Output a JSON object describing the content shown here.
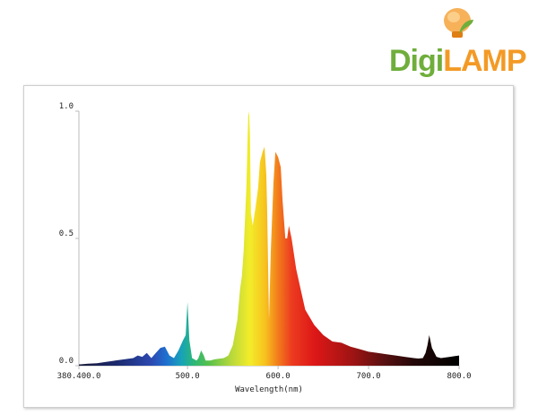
{
  "logo": {
    "text_digi": "Digi",
    "text_lamp": "LAMP",
    "bulb_icon": "lightbulb-leaf-icon",
    "colors": {
      "digi": "#6fae3b",
      "lamp": "#f39a25"
    }
  },
  "chart_data": {
    "type": "area",
    "title": "",
    "xlabel": "Wavelength(nm)",
    "ylabel": "",
    "xlim": [
      380,
      800
    ],
    "ylim": [
      0,
      1.0
    ],
    "grid": false,
    "x_ticks": [
      {
        "value": 380,
        "label": "380.400.0"
      },
      {
        "value": 500,
        "label": "500.0"
      },
      {
        "value": 600,
        "label": "600.0"
      },
      {
        "value": 700,
        "label": "700.0"
      },
      {
        "value": 800,
        "label": "800.0"
      }
    ],
    "y_ticks": [
      {
        "value": 0,
        "label": "0.0"
      },
      {
        "value": 0.5,
        "label": "0.5"
      },
      {
        "value": 1.0,
        "label": "1.0"
      }
    ],
    "series": [
      {
        "fill": "visible-spectrum-gradient",
        "x": [
          380,
          390,
          400,
          410,
          420,
          430,
          440,
          445,
          450,
          455,
          460,
          465,
          470,
          475,
          480,
          485,
          490,
          495,
          498,
          500,
          502,
          505,
          510,
          512,
          515,
          518,
          520,
          525,
          530,
          540,
          545,
          550,
          555,
          558,
          560,
          562,
          565,
          567,
          568,
          569,
          570,
          572,
          575,
          578,
          580,
          583,
          585,
          587,
          588,
          590,
          592,
          595,
          597,
          600,
          603,
          605,
          608,
          610,
          612,
          615,
          620,
          625,
          630,
          640,
          650,
          660,
          670,
          680,
          690,
          700,
          710,
          720,
          730,
          740,
          750,
          755,
          760,
          763,
          765,
          767,
          770,
          775,
          780,
          790,
          800
        ],
        "y": [
          0.005,
          0.008,
          0.01,
          0.015,
          0.02,
          0.025,
          0.03,
          0.04,
          0.035,
          0.05,
          0.03,
          0.05,
          0.07,
          0.075,
          0.04,
          0.03,
          0.06,
          0.1,
          0.12,
          0.25,
          0.1,
          0.03,
          0.02,
          0.03,
          0.06,
          0.04,
          0.02,
          0.02,
          0.025,
          0.03,
          0.04,
          0.08,
          0.18,
          0.3,
          0.35,
          0.45,
          0.7,
          0.98,
          1.0,
          0.9,
          0.6,
          0.55,
          0.62,
          0.7,
          0.8,
          0.84,
          0.86,
          0.75,
          0.6,
          0.18,
          0.45,
          0.72,
          0.84,
          0.82,
          0.78,
          0.65,
          0.5,
          0.5,
          0.55,
          0.5,
          0.38,
          0.3,
          0.22,
          0.16,
          0.12,
          0.095,
          0.09,
          0.075,
          0.065,
          0.055,
          0.05,
          0.045,
          0.04,
          0.035,
          0.03,
          0.028,
          0.03,
          0.05,
          0.08,
          0.12,
          0.07,
          0.035,
          0.03,
          0.035,
          0.04
        ]
      }
    ]
  }
}
